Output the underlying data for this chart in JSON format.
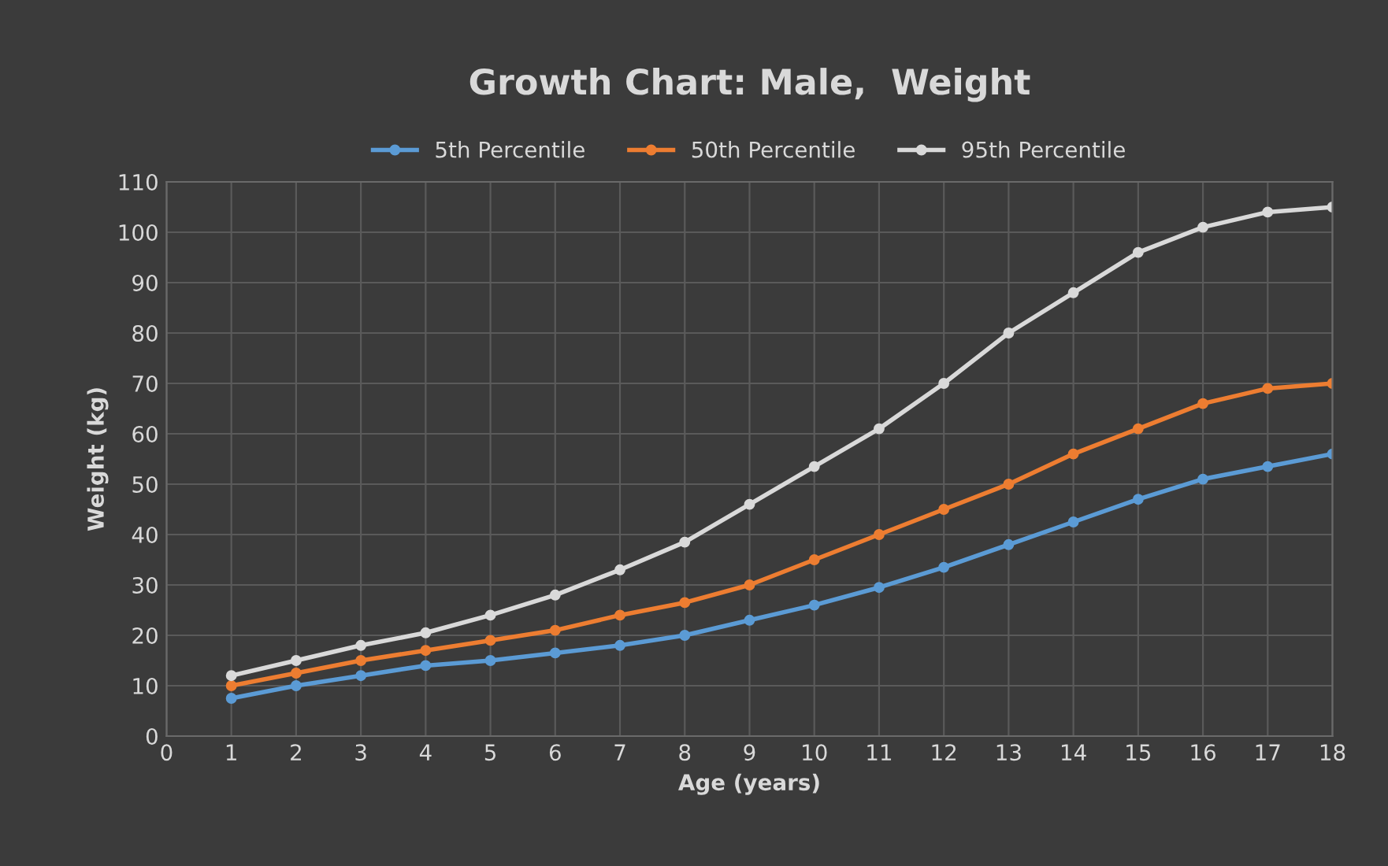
{
  "chart_data": {
    "type": "line",
    "title": "Growth Chart: Male,  Weight",
    "xlabel": "Age (years)",
    "ylabel": "Weight (kg)",
    "x": [
      1,
      2,
      3,
      4,
      5,
      6,
      7,
      8,
      9,
      10,
      11,
      12,
      13,
      14,
      15,
      16,
      17,
      18
    ],
    "series": [
      {
        "name": "5th Percentile",
        "color": "#5b9bd5",
        "values": [
          7.5,
          10,
          12,
          14,
          15,
          16.5,
          18,
          20,
          23,
          26,
          29.5,
          33.5,
          38,
          42.5,
          47,
          51,
          53.5,
          56
        ]
      },
      {
        "name": "50th Percentile",
        "color": "#ed7d31",
        "values": [
          10,
          12.5,
          15,
          17,
          19,
          21,
          24,
          26.5,
          30,
          35,
          40,
          45,
          50,
          56,
          61,
          66,
          69,
          70
        ]
      },
      {
        "name": "95th Percentile",
        "color": "#d9d9d9",
        "values": [
          12,
          15,
          18,
          20.5,
          24,
          28,
          33,
          38.5,
          46,
          53.5,
          61,
          70,
          80,
          88,
          96,
          101,
          104,
          105
        ]
      }
    ],
    "xlim": [
      0,
      18
    ],
    "xticks": [
      0,
      1,
      2,
      3,
      4,
      5,
      6,
      7,
      8,
      9,
      10,
      11,
      12,
      13,
      14,
      15,
      16,
      17,
      18
    ],
    "ylim": [
      0,
      110
    ],
    "yticks": [
      0,
      10,
      20,
      30,
      40,
      50,
      60,
      70,
      80,
      90,
      100,
      110
    ],
    "grid": true,
    "legend": "top",
    "marker": "circle",
    "line_style": "solid"
  }
}
